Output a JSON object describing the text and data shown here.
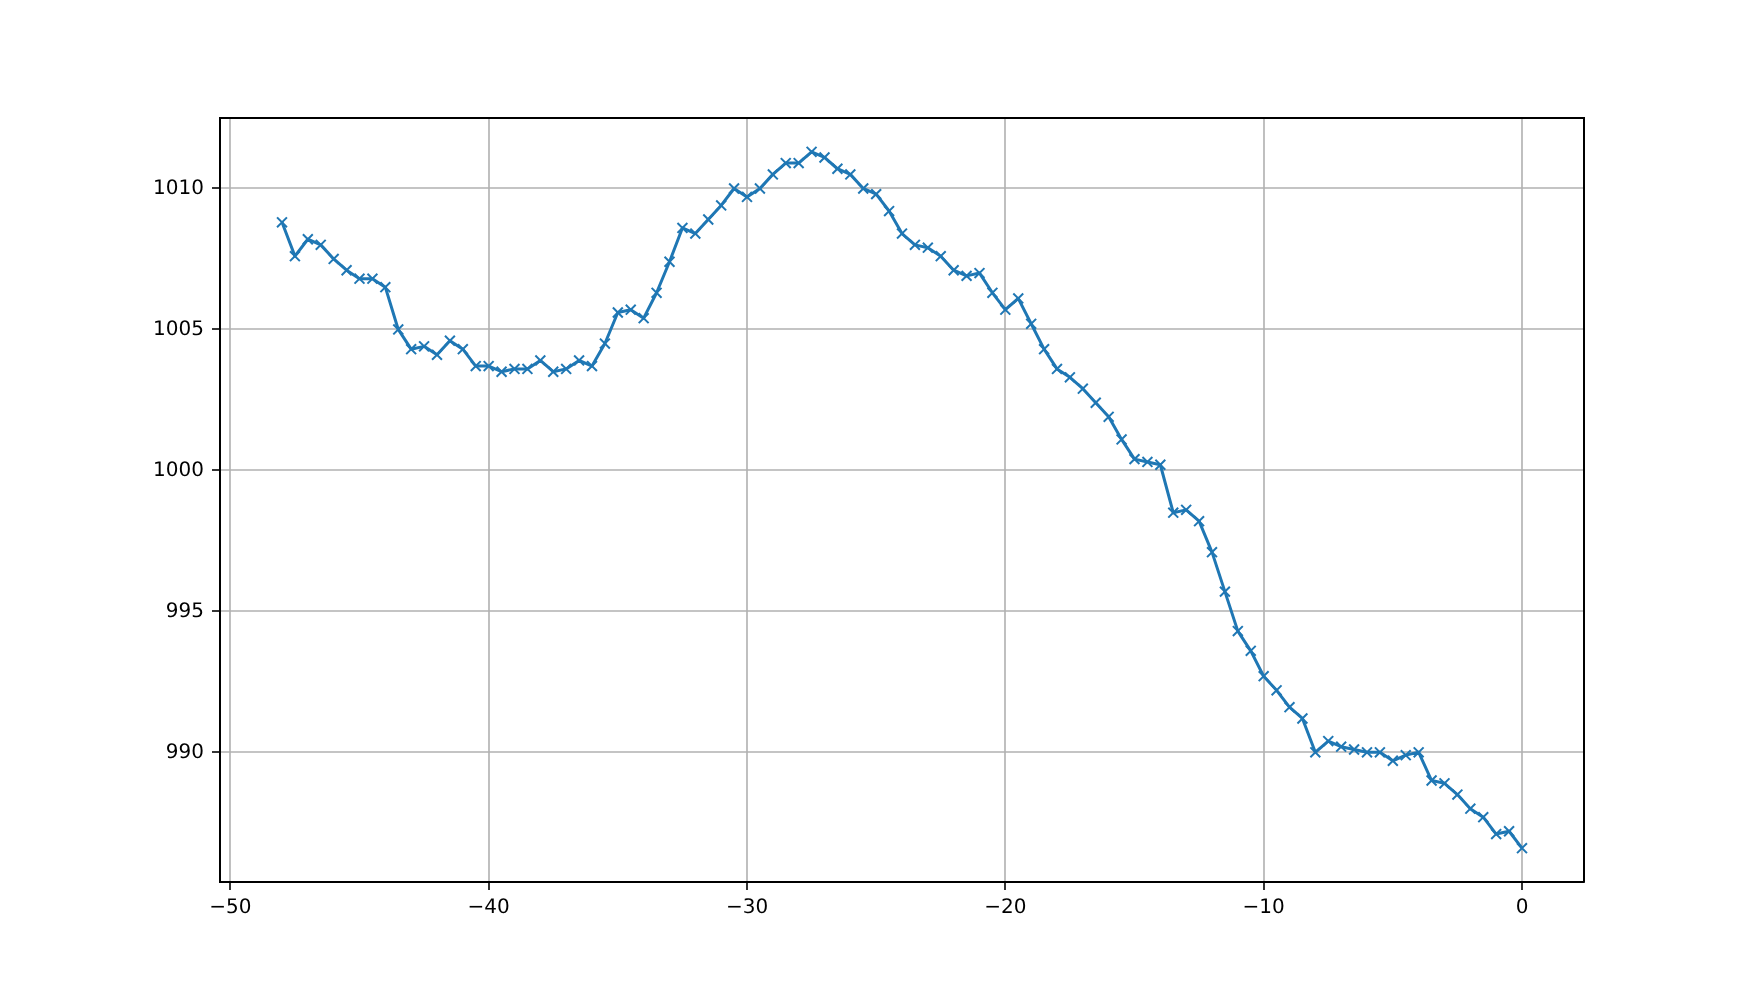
{
  "chart_data": {
    "type": "line",
    "x": [
      -48,
      -47.5,
      -47,
      -46.5,
      -46,
      -45.5,
      -45,
      -44.5,
      -44,
      -43.5,
      -43,
      -42.5,
      -42,
      -41.5,
      -41,
      -40.5,
      -40,
      -39.5,
      -39,
      -38.5,
      -38,
      -37.5,
      -37,
      -36.5,
      -36,
      -35.5,
      -35,
      -34.5,
      -34,
      -33.5,
      -33,
      -32.5,
      -32,
      -31.5,
      -31,
      -30.5,
      -30,
      -29.5,
      -29,
      -28.5,
      -28,
      -27.5,
      -27,
      -26.5,
      -26,
      -25.5,
      -25,
      -24.5,
      -24,
      -23.5,
      -23,
      -22.5,
      -22,
      -21.5,
      -21,
      -20.5,
      -20,
      -19.5,
      -19,
      -18.5,
      -18,
      -17.5,
      -17,
      -16.5,
      -16,
      -15.5,
      -15,
      -14.5,
      -14,
      -13.5,
      -13,
      -12.5,
      -12,
      -11.5,
      -11,
      -10.5,
      -10,
      -9.5,
      -9,
      -8.5,
      -8,
      -7.5,
      -7,
      -6.5,
      -6,
      -5.5,
      -5,
      -4.5,
      -4,
      -3.5,
      -3,
      -2.5,
      -2,
      -1.5,
      -1,
      -0.5,
      0
    ],
    "series": [
      {
        "color": "#1f77b4",
        "values": [
          1008.8,
          1007.6,
          1008.2,
          1008.0,
          1007.5,
          1007.1,
          1006.8,
          1006.8,
          1006.5,
          1005.0,
          1004.3,
          1004.4,
          1004.1,
          1004.6,
          1004.3,
          1003.7,
          1003.7,
          1003.5,
          1003.6,
          1003.6,
          1003.9,
          1003.5,
          1003.6,
          1003.9,
          1003.7,
          1004.5,
          1005.6,
          1005.7,
          1005.4,
          1006.3,
          1007.4,
          1008.6,
          1008.4,
          1008.9,
          1009.4,
          1010.0,
          1009.7,
          1010.0,
          1010.5,
          1010.9,
          1010.9,
          1011.3,
          1011.1,
          1010.7,
          1010.5,
          1010.0,
          1009.8,
          1009.2,
          1008.4,
          1008.0,
          1007.9,
          1007.6,
          1007.1,
          1006.9,
          1007.0,
          1006.3,
          1005.7,
          1006.1,
          1005.2,
          1004.3,
          1003.6,
          1003.3,
          1002.9,
          1002.4,
          1001.9,
          1001.1,
          1000.4,
          1000.3,
          1000.2,
          998.5,
          998.6,
          998.2,
          997.1,
          995.7,
          994.3,
          993.6,
          992.7,
          992.2,
          991.6,
          991.2,
          990.0,
          990.4,
          990.2,
          990.1,
          990.0,
          990.0,
          989.7,
          989.9,
          990.0,
          989.0,
          988.9,
          988.5,
          988.0,
          987.7,
          987.1,
          987.2,
          986.6
        ]
      }
    ],
    "xlim": [
      -50.4,
      2.4
    ],
    "xticks": [
      {
        "value": -50,
        "label": "−50"
      },
      {
        "value": -40,
        "label": "−40"
      },
      {
        "value": -30,
        "label": "−30"
      },
      {
        "value": -20,
        "label": "−20"
      },
      {
        "value": -10,
        "label": "−10"
      },
      0
    ],
    "ylim": [
      985.4,
      1012.5
    ],
    "yticks": [
      990,
      995,
      1000,
      1005,
      1010
    ],
    "grid": true,
    "marker": "cross",
    "line_style": "solid"
  }
}
